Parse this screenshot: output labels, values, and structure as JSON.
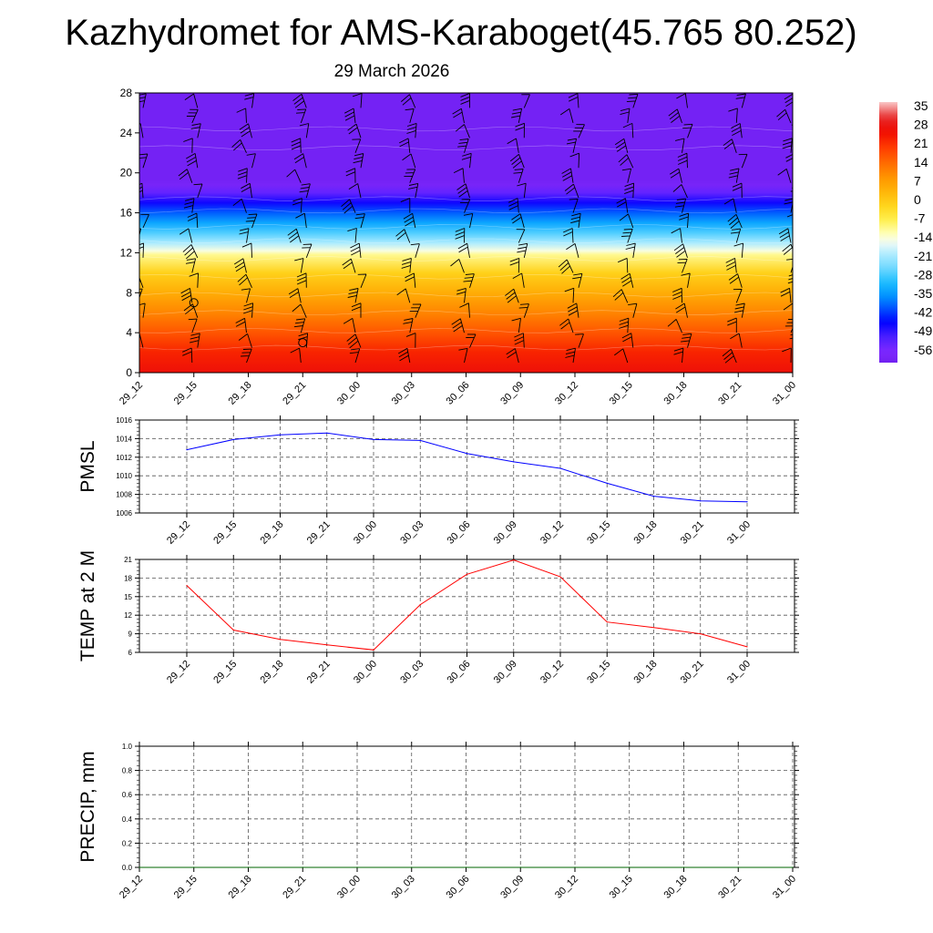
{
  "title": "Kazhydromet for AMS-Karaboget(45.765 80.252)",
  "subtitle": "29 March 2026",
  "time_labels": [
    "29_12",
    "29_15",
    "29_18",
    "29_21",
    "30_00",
    "30_03",
    "30_06",
    "30_09",
    "30_12",
    "30_15",
    "30_18",
    "30_21",
    "31_00"
  ],
  "colors": {
    "pmsl_line": "#0000ff",
    "temp_line": "#ff0000",
    "precip_line": "#006400",
    "grid": "#555555",
    "wind_barb": "#000000"
  },
  "chart_data": [
    {
      "type": "heatmap",
      "name": "upper-air-temperature-and-wind",
      "x": [
        "29_12",
        "29_15",
        "29_18",
        "29_21",
        "30_00",
        "30_03",
        "30_06",
        "30_09",
        "30_12",
        "30_15",
        "30_18",
        "30_21",
        "31_00"
      ],
      "ylim": [
        0,
        28
      ],
      "yticks": [
        0,
        4,
        8,
        12,
        16,
        20,
        24,
        28
      ],
      "temperature_profile": [
        {
          "y": 0,
          "t": 27
        },
        {
          "y": 2,
          "t": 23
        },
        {
          "y": 4,
          "t": 17
        },
        {
          "y": 6,
          "t": 11
        },
        {
          "y": 8,
          "t": 5
        },
        {
          "y": 10,
          "t": -1
        },
        {
          "y": 11.8,
          "t": -10
        },
        {
          "y": 12.2,
          "t": -14
        },
        {
          "y": 13,
          "t": -20
        },
        {
          "y": 14,
          "t": -27
        },
        {
          "y": 15,
          "t": -33
        },
        {
          "y": 16,
          "t": -39
        },
        {
          "y": 17,
          "t": -46
        },
        {
          "y": 18,
          "t": -53
        },
        {
          "y": 18.8,
          "t": -58
        },
        {
          "y": 19.3,
          "t": -59
        },
        {
          "y": 28,
          "t": -59
        }
      ],
      "colorbar": {
        "labels": [
          "35",
          "28",
          "21",
          "14",
          "7",
          "0",
          "-7",
          "-14",
          "-21",
          "-28",
          "-35",
          "-42",
          "-49",
          "-56"
        ],
        "range": [
          -60,
          37
        ]
      },
      "wind_barb_levels": [
        1,
        2.5,
        4,
        5.5,
        7,
        8.5,
        10,
        11.5,
        13,
        14.5,
        16,
        17.5,
        19,
        20.5,
        22,
        23.5,
        25,
        26.5
      ],
      "calm_markers": [
        {
          "x": "29_15",
          "y": 7
        },
        {
          "x": "29_21",
          "y": 3
        }
      ]
    },
    {
      "type": "line",
      "name": "pmsl",
      "ylabel": "PMSL",
      "x": [
        "29_12",
        "29_15",
        "29_18",
        "29_21",
        "30_00",
        "30_03",
        "30_06",
        "30_09",
        "30_12",
        "30_15",
        "30_18",
        "30_21",
        "31_00"
      ],
      "values": [
        1012.8,
        1013.9,
        1014.4,
        1014.6,
        1013.9,
        1013.8,
        1012.4,
        1011.5,
        1010.8,
        1009.2,
        1007.8,
        1007.3,
        1007.2
      ],
      "ylim": [
        1006,
        1016
      ],
      "yticks": [
        "1006",
        "1008",
        "1010",
        "1012",
        "1014",
        "1016"
      ]
    },
    {
      "type": "line",
      "name": "temp-2m",
      "ylabel": "TEMP at 2 M",
      "x": [
        "29_12",
        "29_15",
        "29_18",
        "29_21",
        "30_00",
        "30_03",
        "30_06",
        "30_09",
        "30_12",
        "30_15",
        "30_18",
        "30_21",
        "31_00"
      ],
      "values": [
        16.8,
        9.6,
        8.1,
        7.2,
        6.4,
        13.7,
        18.6,
        20.9,
        18.2,
        10.9,
        10.0,
        9.0,
        6.9
      ],
      "ylim": [
        6,
        21
      ],
      "yticks": [
        "6",
        "9",
        "12",
        "15",
        "18",
        "21"
      ]
    },
    {
      "type": "line",
      "name": "precip",
      "ylabel": "PRECIP, mm",
      "x": [
        "29_12",
        "29_15",
        "29_18",
        "29_21",
        "30_00",
        "30_03",
        "30_06",
        "30_09",
        "30_12",
        "30_15",
        "30_18",
        "30_21",
        "31_00"
      ],
      "values": [
        0,
        0,
        0,
        0,
        0,
        0,
        0,
        0,
        0,
        0,
        0,
        0,
        0
      ],
      "ylim": [
        0,
        1
      ],
      "yticks": [
        "0.0",
        "0.2",
        "0.4",
        "0.6",
        "0.8",
        "1.0"
      ]
    }
  ]
}
